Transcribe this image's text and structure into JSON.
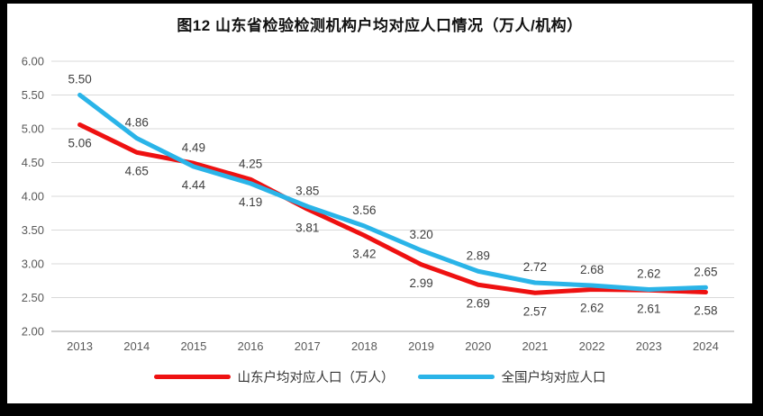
{
  "chart_data": {
    "type": "line",
    "title": "图12 山东省检验检测机构户均对应人口情况（万人/机构）",
    "categories": [
      "2013",
      "2014",
      "2015",
      "2016",
      "2017",
      "2018",
      "2019",
      "2020",
      "2021",
      "2022",
      "2023",
      "2024"
    ],
    "series": [
      {
        "name": "山东户均对应人口（万人）",
        "color": "#ee1111",
        "values": [
          5.06,
          4.65,
          4.49,
          4.25,
          3.81,
          3.42,
          2.99,
          2.69,
          2.57,
          2.62,
          2.61,
          2.58
        ]
      },
      {
        "name": "全国户均对应人口",
        "color": "#2ab4e8",
        "values": [
          5.5,
          4.86,
          4.44,
          4.19,
          3.85,
          3.56,
          3.2,
          2.89,
          2.72,
          2.68,
          2.62,
          2.65
        ]
      }
    ],
    "ylim": [
      2.0,
      6.0
    ],
    "ytick_labels": [
      "2.00",
      "2.50",
      "3.00",
      "3.50",
      "4.00",
      "4.50",
      "5.00",
      "5.50",
      "6.00"
    ],
    "xlabel": "",
    "ylabel": "",
    "grid": true,
    "data_labels": true,
    "legend_position": "bottom"
  },
  "style": {
    "gridline_color": "#d9d9d9",
    "axis_line_color": "#bfbfbf",
    "tick_color": "#595959",
    "data_label_color": "#3f3f3f",
    "frame_border_color": "#000000",
    "background": "#ffffff"
  }
}
